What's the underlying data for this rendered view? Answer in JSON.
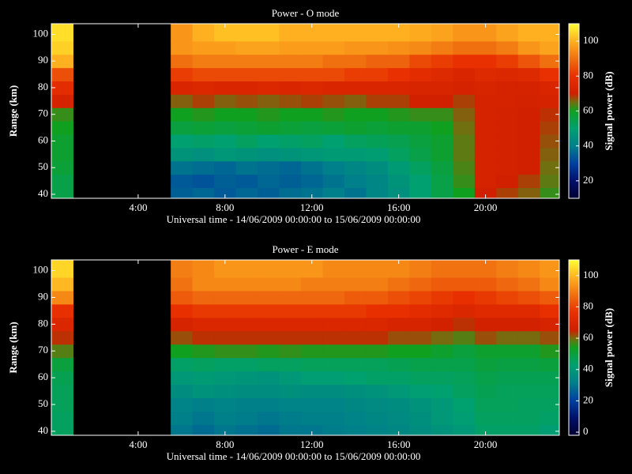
{
  "chart_data": [
    {
      "type": "heatmap",
      "title": "Power - O mode",
      "xlabel": "Universal time - 14/06/2009 00:00:00 to 15/06/2009 00:00:00",
      "ylabel": "Range (km)",
      "colorbar_label": "Signal power (dB)",
      "xbins": [
        0,
        1,
        5.5,
        6.5,
        7.5,
        8.5,
        9.5,
        10.5,
        11.5,
        12.5,
        13.5,
        14.5,
        15.5,
        16.5,
        17.5,
        18.5,
        19.5,
        20.5,
        21.5,
        22.5,
        23.4
      ],
      "ybins": [
        38.5,
        42.5,
        47.5,
        52.5,
        57.5,
        62.5,
        67.5,
        72.5,
        77.5,
        82.5,
        87.5,
        92.5,
        97.5,
        104
      ],
      "z": [
        [
          55,
          null,
          35,
          36,
          34,
          36,
          35,
          37,
          38,
          40,
          38,
          42,
          45,
          50,
          55,
          60,
          70,
          68,
          66,
          62
        ],
        [
          55,
          null,
          34,
          33,
          35,
          34,
          36,
          35,
          36,
          38,
          40,
          42,
          46,
          50,
          55,
          62,
          72,
          70,
          68,
          64
        ],
        [
          57,
          null,
          38,
          37,
          36,
          38,
          37,
          36,
          38,
          40,
          42,
          44,
          48,
          52,
          56,
          63,
          72,
          71,
          70,
          65
        ],
        [
          58,
          null,
          46,
          45,
          47,
          46,
          45,
          46,
          47,
          48,
          48,
          49,
          52,
          55,
          58,
          64,
          72,
          71,
          70,
          66
        ],
        [
          58,
          null,
          50,
          51,
          50,
          52,
          50,
          51,
          52,
          50,
          52,
          53,
          54,
          56,
          58,
          64,
          72,
          71,
          70,
          67
        ],
        [
          60,
          null,
          56,
          57,
          56,
          57,
          58,
          57,
          56,
          57,
          58,
          57,
          58,
          58,
          60,
          65,
          72,
          71,
          70,
          68
        ],
        [
          62,
          null,
          60,
          61,
          60,
          60,
          61,
          60,
          60,
          61,
          60,
          60,
          61,
          62,
          62,
          66,
          72,
          71,
          70,
          69
        ],
        [
          72,
          null,
          66,
          68,
          66,
          67,
          66,
          67,
          68,
          67,
          66,
          68,
          68,
          70,
          70,
          68,
          72,
          72,
          71,
          72
        ],
        [
          78,
          null,
          74,
          75,
          74,
          74,
          75,
          74,
          75,
          74,
          74,
          74,
          74,
          73,
          73,
          72,
          73,
          72,
          72,
          74
        ],
        [
          85,
          null,
          82,
          84,
          84,
          84,
          84,
          84,
          84,
          84,
          82,
          82,
          80,
          78,
          76,
          74,
          76,
          75,
          76,
          80
        ],
        [
          100,
          null,
          90,
          92,
          92,
          92,
          92,
          92,
          92,
          90,
          90,
          88,
          88,
          84,
          82,
          80,
          80,
          82,
          86,
          90
        ],
        [
          104,
          null,
          96,
          97,
          97,
          98,
          98,
          97,
          97,
          97,
          96,
          96,
          95,
          94,
          92,
          90,
          90,
          92,
          96,
          98
        ],
        [
          106,
          null,
          96,
          100,
          102,
          102,
          102,
          100,
          100,
          100,
          100,
          100,
          100,
          99,
          98,
          96,
          96,
          98,
          100,
          100
        ]
      ],
      "xlim": [
        0,
        23.4
      ],
      "ylim": [
        38.5,
        104
      ],
      "xticks": [
        {
          "value": 4,
          "label": "4:00"
        },
        {
          "value": 8,
          "label": "8:00"
        },
        {
          "value": 12,
          "label": "12:00"
        },
        {
          "value": 16,
          "label": "16:00"
        },
        {
          "value": 20,
          "label": "20:00"
        }
      ],
      "yticks": [
        40,
        50,
        60,
        70,
        80,
        90,
        100
      ],
      "clim": [
        10,
        110
      ],
      "cticks": [
        20,
        40,
        60,
        80,
        100
      ]
    },
    {
      "type": "heatmap",
      "title": "Power - E mode",
      "xlabel": "Universal time - 14/06/2009 00:00:00 to 15/06/2009 00:00:00",
      "ylabel": "Range (km)",
      "colorbar_label": "Signal power (dB)",
      "xbins": [
        0,
        1,
        5.5,
        6.5,
        7.5,
        8.5,
        9.5,
        10.5,
        11.5,
        12.5,
        13.5,
        14.5,
        15.5,
        16.5,
        17.5,
        18.5,
        19.5,
        20.5,
        21.5,
        22.5,
        23.4
      ],
      "ybins": [
        38.5,
        42.5,
        47.5,
        52.5,
        57.5,
        62.5,
        67.5,
        72.5,
        77.5,
        82.5,
        87.5,
        92.5,
        97.5,
        104
      ],
      "z": [
        [
          45,
          null,
          30,
          28,
          30,
          29,
          28,
          30,
          30,
          31,
          32,
          33,
          34,
          36,
          38,
          40,
          44,
          44,
          44,
          42
        ],
        [
          45,
          null,
          32,
          30,
          32,
          31,
          30,
          31,
          32,
          32,
          33,
          34,
          35,
          37,
          40,
          42,
          45,
          45,
          45,
          44
        ],
        [
          46,
          null,
          33,
          32,
          33,
          32,
          32,
          33,
          33,
          33,
          34,
          35,
          36,
          38,
          40,
          43,
          46,
          46,
          45,
          45
        ],
        [
          46,
          null,
          36,
          38,
          37,
          36,
          36,
          37,
          36,
          36,
          37,
          38,
          40,
          42,
          43,
          45,
          47,
          46,
          46,
          46
        ],
        [
          47,
          null,
          40,
          41,
          40,
          39,
          38,
          40,
          42,
          42,
          43,
          44,
          44,
          45,
          45,
          46,
          48,
          47,
          47,
          47
        ],
        [
          50,
          null,
          44,
          45,
          44,
          44,
          45,
          45,
          46,
          46,
          46,
          46,
          47,
          48,
          48,
          48,
          50,
          49,
          49,
          50
        ],
        [
          58,
          null,
          54,
          55,
          56,
          56,
          55,
          56,
          55,
          55,
          55,
          55,
          54,
          54,
          52,
          50,
          52,
          52,
          52,
          55
        ],
        [
          64,
          null,
          62,
          64,
          64,
          64,
          64,
          64,
          64,
          64,
          64,
          64,
          62,
          62,
          60,
          58,
          62,
          60,
          60,
          62
        ],
        [
          70,
          null,
          68,
          70,
          70,
          70,
          70,
          70,
          70,
          70,
          70,
          70,
          68,
          68,
          66,
          64,
          66,
          66,
          66,
          68
        ],
        [
          76,
          null,
          76,
          78,
          78,
          78,
          78,
          78,
          78,
          78,
          78,
          76,
          76,
          74,
          72,
          70,
          72,
          72,
          72,
          76
        ],
        [
          92,
          null,
          84,
          86,
          86,
          86,
          86,
          86,
          86,
          86,
          84,
          84,
          82,
          80,
          78,
          76,
          78,
          80,
          82,
          84
        ],
        [
          100,
          null,
          88,
          92,
          92,
          92,
          92,
          92,
          90,
          90,
          90,
          90,
          88,
          86,
          84,
          84,
          84,
          86,
          88,
          92
        ],
        [
          104,
          null,
          90,
          92,
          94,
          94,
          94,
          94,
          94,
          92,
          92,
          92,
          92,
          90,
          88,
          88,
          88,
          90,
          92,
          94
        ]
      ],
      "xlim": [
        0,
        23.4
      ],
      "ylim": [
        38.5,
        104
      ],
      "xticks": [
        {
          "value": 4,
          "label": "4:00"
        },
        {
          "value": 8,
          "label": "8:00"
        },
        {
          "value": 12,
          "label": "12:00"
        },
        {
          "value": 16,
          "label": "16:00"
        },
        {
          "value": 20,
          "label": "20:00"
        }
      ],
      "yticks": [
        40,
        50,
        60,
        70,
        80,
        90,
        100
      ],
      "clim": [
        -2,
        110
      ],
      "cticks": [
        0,
        20,
        40,
        60,
        80,
        100
      ]
    }
  ]
}
